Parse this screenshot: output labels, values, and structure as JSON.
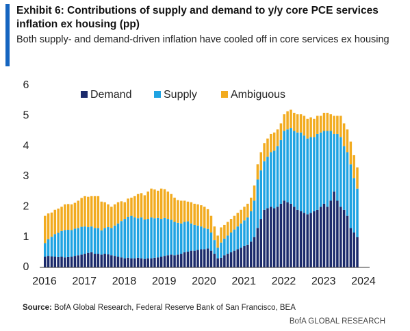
{
  "chart_data": {
    "type": "stacked_bar",
    "title": "Exhibit 6: Contributions of supply and demand to y/y core PCE services inflation ex housing (pp)",
    "subtitle": "Both supply- and demand-driven inflation have cooled off in core services ex housing",
    "source_label": "Source:",
    "source": "BofA Global Research, Federal Reserve Bank of San Francisco, BEA",
    "footer": "BofA GLOBAL RESEARCH",
    "xlim": [
      2016,
      2024
    ],
    "xticks": [
      2016,
      2017,
      2018,
      2019,
      2020,
      2021,
      2022,
      2023,
      2024
    ],
    "ylim": [
      0,
      6
    ],
    "yticks": [
      0,
      1,
      2,
      3,
      4,
      5,
      6
    ],
    "grid": false,
    "x": [
      2016,
      2016.083,
      2016.167,
      2016.25,
      2016.333,
      2016.417,
      2016.5,
      2016.583,
      2016.667,
      2016.75,
      2016.833,
      2016.917,
      2017,
      2017.083,
      2017.167,
      2017.25,
      2017.333,
      2017.417,
      2017.5,
      2017.583,
      2017.667,
      2017.75,
      2017.833,
      2017.917,
      2018,
      2018.083,
      2018.167,
      2018.25,
      2018.333,
      2018.417,
      2018.5,
      2018.583,
      2018.667,
      2018.75,
      2018.833,
      2018.917,
      2019,
      2019.083,
      2019.167,
      2019.25,
      2019.333,
      2019.417,
      2019.5,
      2019.583,
      2019.667,
      2019.75,
      2019.833,
      2019.917,
      2020,
      2020.083,
      2020.167,
      2020.25,
      2020.333,
      2020.417,
      2020.5,
      2020.583,
      2020.667,
      2020.75,
      2020.833,
      2020.917,
      2021,
      2021.083,
      2021.167,
      2021.25,
      2021.333,
      2021.417,
      2021.5,
      2021.583,
      2021.667,
      2021.75,
      2021.833,
      2021.917,
      2022,
      2022.083,
      2022.167,
      2022.25,
      2022.333,
      2022.417,
      2022.5,
      2022.583,
      2022.667,
      2022.75,
      2022.833,
      2022.917,
      2023,
      2023.083,
      2023.167,
      2023.25,
      2023.333,
      2023.417,
      2023.5,
      2023.583,
      2023.667,
      2023.75,
      2023.833
    ],
    "series": [
      {
        "name": "Demand",
        "color": "#1b2a6b",
        "values": [
          0.35,
          0.38,
          0.36,
          0.35,
          0.34,
          0.35,
          0.33,
          0.34,
          0.35,
          0.38,
          0.4,
          0.42,
          0.45,
          0.48,
          0.5,
          0.45,
          0.45,
          0.42,
          0.45,
          0.43,
          0.4,
          0.38,
          0.35,
          0.33,
          0.3,
          0.32,
          0.3,
          0.3,
          0.32,
          0.3,
          0.28,
          0.3,
          0.3,
          0.32,
          0.33,
          0.35,
          0.38,
          0.4,
          0.42,
          0.4,
          0.42,
          0.45,
          0.5,
          0.52,
          0.55,
          0.55,
          0.58,
          0.6,
          0.6,
          0.62,
          0.55,
          0.45,
          0.3,
          0.32,
          0.4,
          0.45,
          0.5,
          0.55,
          0.6,
          0.65,
          0.7,
          0.75,
          0.85,
          1.0,
          1.3,
          1.6,
          1.9,
          1.95,
          2.0,
          1.95,
          2.0,
          2.1,
          2.2,
          2.15,
          2.1,
          2.0,
          1.9,
          1.85,
          1.8,
          1.75,
          1.8,
          1.85,
          1.9,
          2.0,
          2.1,
          2.0,
          2.2,
          2.5,
          2.2,
          2.0,
          1.9,
          1.7,
          1.3,
          1.15,
          1.0
        ]
      },
      {
        "name": "Supply",
        "color": "#1fa3e2",
        "values": [
          0.45,
          0.55,
          0.65,
          0.75,
          0.8,
          0.85,
          0.9,
          0.9,
          0.88,
          0.9,
          0.9,
          0.92,
          0.9,
          0.85,
          0.85,
          0.85,
          0.85,
          0.8,
          0.85,
          0.9,
          0.9,
          1.0,
          1.1,
          1.2,
          1.3,
          1.35,
          1.4,
          1.35,
          1.3,
          1.35,
          1.3,
          1.3,
          1.35,
          1.3,
          1.3,
          1.25,
          1.25,
          1.2,
          1.15,
          1.1,
          1.05,
          1.0,
          1.0,
          1.0,
          0.9,
          0.85,
          0.8,
          0.75,
          0.7,
          0.65,
          0.6,
          0.45,
          0.35,
          0.5,
          0.55,
          0.6,
          0.65,
          0.7,
          0.75,
          0.8,
          0.85,
          0.9,
          1.0,
          1.2,
          1.6,
          1.6,
          1.6,
          1.7,
          1.8,
          1.9,
          2.0,
          2.1,
          2.3,
          2.4,
          2.5,
          2.5,
          2.55,
          2.6,
          2.55,
          2.5,
          2.5,
          2.45,
          2.5,
          2.45,
          2.4,
          2.5,
          2.3,
          1.9,
          2.2,
          2.3,
          2.1,
          2.1,
          2.1,
          1.8,
          1.6
        ]
      },
      {
        "name": "Ambiguous",
        "color": "#f2ab1f",
        "values": [
          0.9,
          0.85,
          0.8,
          0.8,
          0.8,
          0.8,
          0.85,
          0.85,
          0.85,
          0.85,
          0.9,
          0.95,
          1.0,
          1.0,
          1.0,
          1.05,
          1.05,
          0.95,
          0.85,
          0.75,
          0.7,
          0.7,
          0.7,
          0.65,
          0.55,
          0.6,
          0.6,
          0.7,
          0.8,
          0.8,
          0.8,
          0.9,
          0.95,
          0.95,
          0.9,
          1.0,
          0.95,
          0.9,
          0.85,
          0.8,
          0.75,
          0.75,
          0.7,
          0.65,
          0.7,
          0.7,
          0.7,
          0.7,
          0.7,
          0.65,
          0.55,
          0.45,
          0.4,
          0.5,
          0.45,
          0.45,
          0.45,
          0.45,
          0.45,
          0.45,
          0.45,
          0.45,
          0.45,
          0.5,
          0.5,
          0.6,
          0.6,
          0.6,
          0.6,
          0.6,
          0.55,
          0.55,
          0.55,
          0.6,
          0.6,
          0.6,
          0.6,
          0.6,
          0.65,
          0.65,
          0.65,
          0.6,
          0.6,
          0.55,
          0.6,
          0.6,
          0.55,
          0.6,
          0.6,
          0.7,
          0.75,
          0.75,
          0.75,
          0.75,
          0.7
        ]
      }
    ]
  }
}
